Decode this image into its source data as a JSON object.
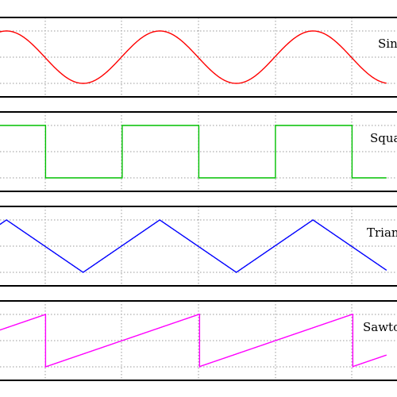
{
  "chart_data": [
    {
      "type": "line",
      "label": "Sine",
      "color": "#ff0000",
      "shape": "sine",
      "period": 2,
      "x_range": [
        0,
        5.2
      ],
      "y_range": [
        -1,
        1
      ],
      "grid": true
    },
    {
      "type": "line",
      "label": "Square",
      "color": "#00c000",
      "shape": "square",
      "period": 2,
      "x_range": [
        0,
        5.2
      ],
      "y_range": [
        -1,
        1
      ],
      "grid": true
    },
    {
      "type": "line",
      "label": "Triangle",
      "color": "#0000ff",
      "shape": "triangle",
      "period": 2,
      "x_range": [
        0,
        5.2
      ],
      "y_range": [
        -1,
        1
      ],
      "grid": true
    },
    {
      "type": "line",
      "label": "Sawtooth",
      "color": "#ff00ff",
      "shape": "sawtooth",
      "period": 2,
      "x_range": [
        0,
        5.2
      ],
      "y_range": [
        -1,
        1
      ],
      "grid": true
    }
  ]
}
